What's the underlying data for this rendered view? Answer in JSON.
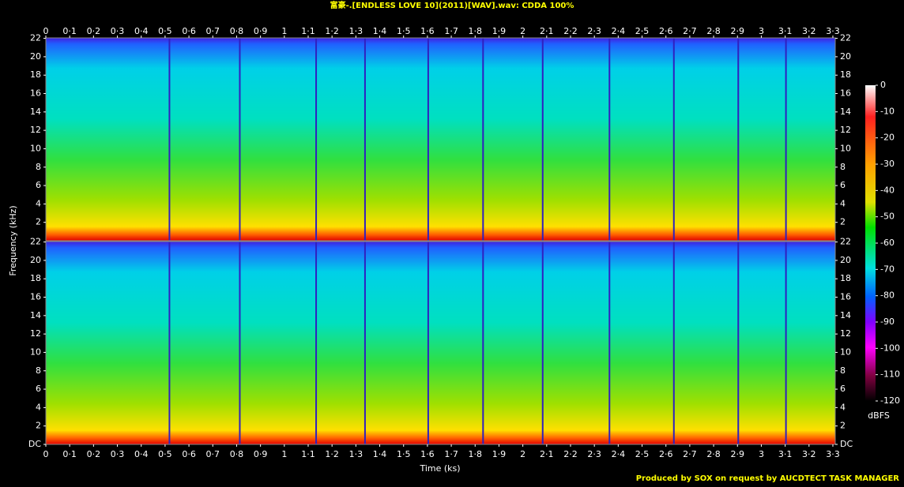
{
  "chart_data": {
    "type": "spectrogram",
    "title": "富豪-.[ENDLESS LOVE 10](2011)[WAV].wav: CDDA 100%",
    "xlabel": "Time (ks)",
    "ylabel": "Frequency (kHz)",
    "footer": "Produced by SOX on request by AUCDTECT TASK MANAGER",
    "xlim": [
      0,
      3.31
    ],
    "xticks": [
      0,
      {
        "value": 0.1,
        "label": "0·1"
      },
      {
        "value": 0.2,
        "label": "0·2"
      },
      {
        "value": 0.3,
        "label": "0·3"
      },
      {
        "value": 0.4,
        "label": "0·4"
      },
      {
        "value": 0.5,
        "label": "0·5"
      },
      {
        "value": 0.6,
        "label": "0·6"
      },
      {
        "value": 0.7,
        "label": "0·7"
      },
      {
        "value": 0.8,
        "label": "0·8"
      },
      {
        "value": 0.9,
        "label": "0·9"
      },
      1,
      {
        "value": 1.1,
        "label": "1·1"
      },
      {
        "value": 1.2,
        "label": "1·2"
      },
      {
        "value": 1.3,
        "label": "1·3"
      },
      {
        "value": 1.4,
        "label": "1·4"
      },
      {
        "value": 1.5,
        "label": "1·5"
      },
      {
        "value": 1.6,
        "label": "1·6"
      },
      {
        "value": 1.7,
        "label": "1·7"
      },
      {
        "value": 1.8,
        "label": "1·8"
      },
      {
        "value": 1.9,
        "label": "1·9"
      },
      2,
      {
        "value": 2.1,
        "label": "2·1"
      },
      {
        "value": 2.2,
        "label": "2·2"
      },
      {
        "value": 2.3,
        "label": "2·3"
      },
      {
        "value": 2.4,
        "label": "2·4"
      },
      {
        "value": 2.5,
        "label": "2·5"
      },
      {
        "value": 2.6,
        "label": "2·6"
      },
      {
        "value": 2.7,
        "label": "2·7"
      },
      {
        "value": 2.8,
        "label": "2·8"
      },
      {
        "value": 2.9,
        "label": "2·9"
      },
      3,
      {
        "value": 3.1,
        "label": "3·1"
      },
      {
        "value": 3.2,
        "label": "3·2"
      },
      {
        "value": 3.3,
        "label": "3·3"
      }
    ],
    "ylim": [
      0,
      22.05
    ],
    "panels": [
      {
        "yticks": [
          2,
          4,
          6,
          8,
          10,
          12,
          14,
          16,
          18,
          20,
          22
        ]
      },
      {
        "yticks": [
          {
            "value": 0,
            "label": "DC"
          },
          2,
          4,
          6,
          8,
          10,
          12,
          14,
          16,
          18,
          20,
          22
        ]
      }
    ],
    "colorbar_label": "dBFS",
    "zlim": [
      -120,
      0
    ],
    "zticks": [
      0,
      -10,
      -20,
      -30,
      -40,
      -50,
      -60,
      -70,
      -80,
      -90,
      -100,
      -110,
      -120
    ]
  }
}
